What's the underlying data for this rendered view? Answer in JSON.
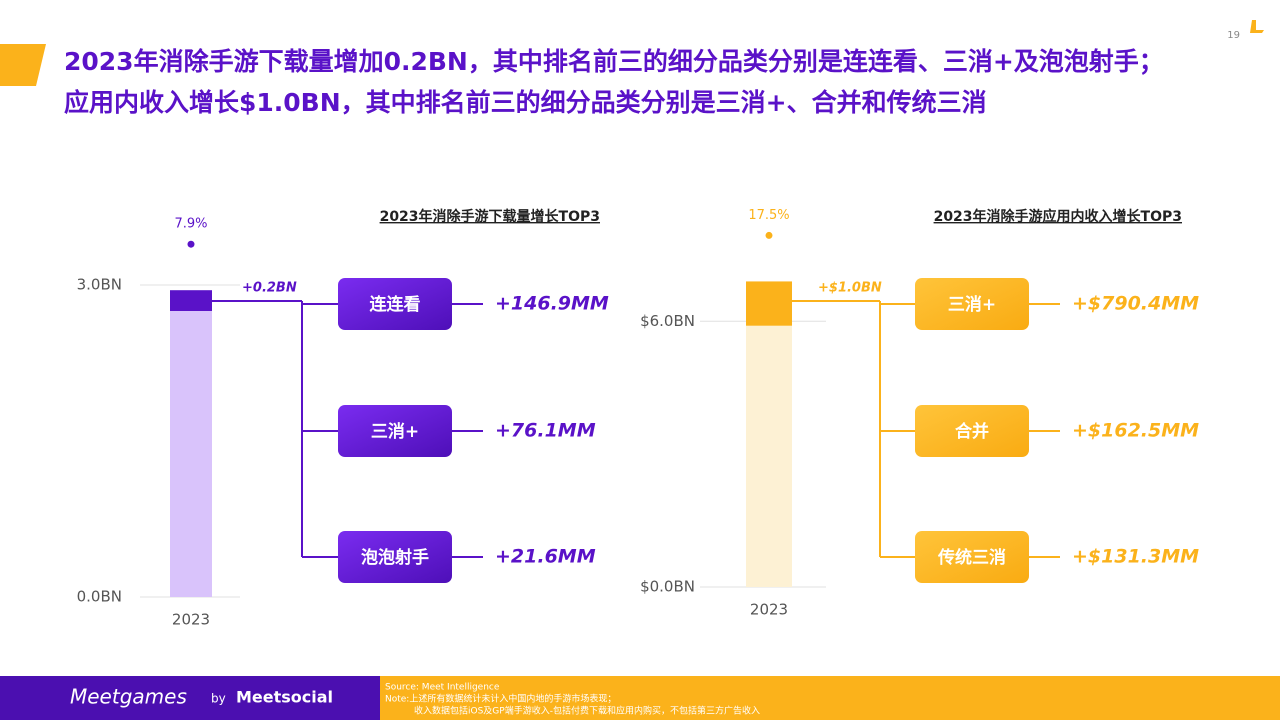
{
  "header": {
    "title_lines": [
      "2023年消除手游下载量增加0.2BN，其中排名前三的细分品类分别是连连看、三消+及泡泡射手；",
      "应用内收入增长$1.0BN，其中排名前三的细分品类分别是三消+、合并和传统三消"
    ],
    "page_number": "19"
  },
  "chart_data": [
    {
      "type": "bar",
      "title": "2023年消除手游下载量增长TOP3",
      "categories": [
        "2023"
      ],
      "series": [
        {
          "color": "#d9c3fb",
          "values": [
            2.75
          ]
        },
        {
          "color": "#5a12c8",
          "values": [
            0.2
          ],
          "value_labels": [
            "+0.2BN"
          ]
        }
      ],
      "ylim": [
        0,
        3
      ],
      "yticks": [
        {
          "value": 0,
          "label": "0.0BN"
        },
        {
          "value": 3,
          "label": "3.0BN"
        }
      ],
      "annotation": "7.9%",
      "accent": "#5a12c8",
      "breakdown": [
        {
          "name": "连连看",
          "value": "+146.9MM"
        },
        {
          "name": "三消+",
          "value": "+76.1MM"
        },
        {
          "name": "泡泡射手",
          "value": "+21.6MM"
        }
      ]
    },
    {
      "type": "bar",
      "title": "2023年消除手游应用内收入增长TOP3",
      "categories": [
        "2023"
      ],
      "series": [
        {
          "color": "#fdf1d4",
          "values": [
            5.9
          ]
        },
        {
          "color": "#fbb21b",
          "values": [
            1.0
          ],
          "value_labels": [
            "+$1.0BN"
          ]
        }
      ],
      "ylim": [
        0,
        7
      ],
      "yticks": [
        {
          "value": 0,
          "label": "$0.0BN"
        },
        {
          "value": 6,
          "label": "$6.0BN"
        }
      ],
      "annotation": "17.5%",
      "accent": "#fbb21b",
      "breakdown": [
        {
          "name": "三消+",
          "value": "+$790.4MM"
        },
        {
          "name": "合并",
          "value": "+$162.5MM"
        },
        {
          "name": "传统三消",
          "value": "+$131.3MM"
        }
      ]
    }
  ],
  "footer": {
    "brand": "Meetgames",
    "by": "by",
    "company": "Meetsocial",
    "source": "Source: Meet Intelligence",
    "note_lines": [
      "Note:上述所有数据统计未计入中国内地的手游市场表现；",
      "收入数据包括iOS及GP端手游收入-包括付费下载和应用内购买，不包括第三方广告收入"
    ]
  }
}
